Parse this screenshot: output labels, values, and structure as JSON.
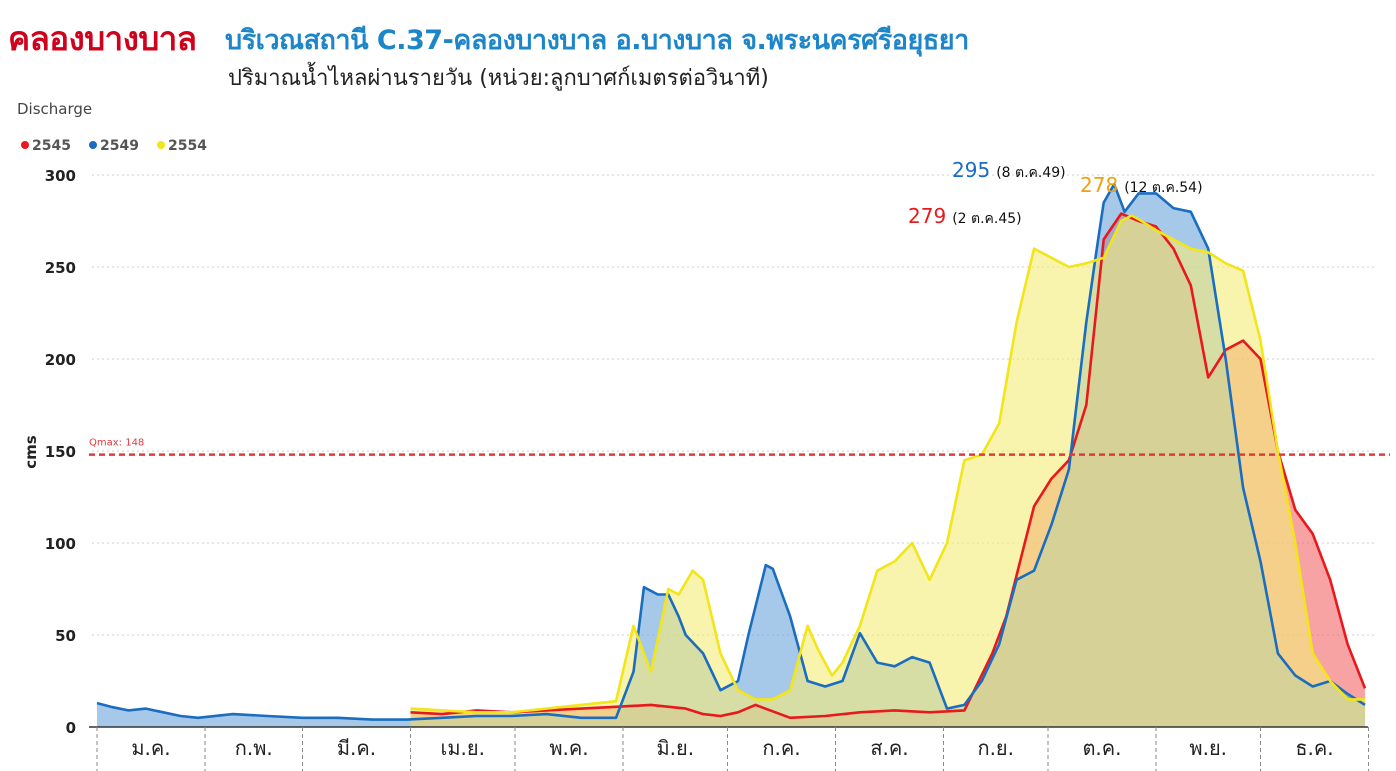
{
  "header": {
    "title_main": "คลองบางบาล",
    "title_station": "บริเวณสถานี C.37-คลองบางบาล อ.บางบาล จ.พระนครศรีอยุธยา",
    "subtitle": "ปริมาณน้ำไหลผ่านรายวัน (หน่วย:ลูกบาศก์เมตรต่อวินาที)"
  },
  "chart_data": {
    "type": "area",
    "title": "Discharge",
    "ylabel": "cms",
    "xlabel": "",
    "ylim": [
      0,
      300
    ],
    "yticks": [
      0,
      50,
      100,
      150,
      200,
      250,
      300
    ],
    "grid": true,
    "legend_position": "top-left",
    "months": [
      "ม.ค.",
      "ก.พ.",
      "มี.ค.",
      "เม.ย.",
      "พ.ค.",
      "มิ.ย.",
      "ก.ค.",
      "ส.ค.",
      "ก.ย.",
      "ต.ค.",
      "พ.ย.",
      "ธ.ค."
    ],
    "reference_line": {
      "label": "Qmax: 148",
      "value": 148,
      "color": "#e03a3e"
    },
    "series": [
      {
        "name": "2545",
        "color": "#e8191d",
        "fill": "#f36b6b",
        "x": [
          91,
          100,
          110,
          120,
          130,
          140,
          150,
          160,
          170,
          175,
          180,
          185,
          190,
          200,
          210,
          220,
          230,
          240,
          250,
          258,
          262,
          266,
          270,
          275,
          280,
          285,
          290,
          295,
          300,
          305,
          310,
          315,
          320,
          325,
          330,
          335,
          340,
          345,
          350,
          355,
          360,
          365
        ],
        "y": [
          8,
          7,
          9,
          8,
          9,
          10,
          11,
          12,
          10,
          7,
          6,
          8,
          12,
          5,
          6,
          8,
          9,
          8,
          9,
          40,
          60,
          90,
          120,
          135,
          145,
          175,
          265,
          279,
          275,
          272,
          260,
          240,
          190,
          205,
          210,
          200,
          150,
          118,
          105,
          80,
          45,
          21
        ]
      },
      {
        "name": "2549",
        "color": "#1a6dbf",
        "fill": "#6fa8dc",
        "x": [
          1,
          5,
          10,
          15,
          20,
          25,
          30,
          40,
          50,
          60,
          70,
          80,
          90,
          100,
          110,
          120,
          130,
          140,
          150,
          155,
          158,
          162,
          165,
          168,
          170,
          175,
          180,
          185,
          188,
          193,
          195,
          200,
          205,
          210,
          215,
          220,
          225,
          230,
          235,
          240,
          245,
          250,
          255,
          260,
          265,
          270,
          275,
          280,
          285,
          288,
          290,
          293,
          296,
          300,
          305,
          310,
          315,
          320,
          325,
          330,
          335,
          340,
          345,
          350,
          355,
          360,
          365
        ],
        "y": [
          13,
          11,
          9,
          10,
          8,
          6,
          5,
          7,
          6,
          5,
          5,
          4,
          4,
          5,
          6,
          6,
          7,
          5,
          5,
          30,
          76,
          72,
          72,
          60,
          50,
          40,
          20,
          25,
          50,
          88,
          86,
          60,
          25,
          22,
          25,
          51,
          35,
          33,
          38,
          35,
          10,
          12,
          25,
          45,
          80,
          85,
          110,
          140,
          220,
          260,
          285,
          295,
          280,
          290,
          290,
          282,
          280,
          260,
          200,
          130,
          90,
          40,
          28,
          22,
          25,
          18,
          12
        ]
      },
      {
        "name": "2554",
        "color": "#f2e51a",
        "fill": "#f4ec7a",
        "x": [
          91,
          100,
          110,
          120,
          130,
          140,
          150,
          155,
          160,
          165,
          168,
          172,
          175,
          180,
          185,
          190,
          195,
          200,
          205,
          208,
          212,
          215,
          220,
          225,
          230,
          235,
          240,
          245,
          250,
          255,
          260,
          265,
          270,
          275,
          280,
          285,
          290,
          295,
          298,
          300,
          305,
          310,
          315,
          320,
          325,
          330,
          335,
          340,
          345,
          350,
          355,
          360,
          365
        ],
        "y": [
          10,
          9,
          8,
          8,
          10,
          12,
          14,
          55,
          30,
          75,
          72,
          85,
          80,
          40,
          20,
          15,
          15,
          20,
          55,
          42,
          28,
          35,
          55,
          85,
          90,
          100,
          80,
          100,
          145,
          148,
          165,
          220,
          260,
          255,
          250,
          252,
          255,
          275,
          278,
          276,
          270,
          265,
          260,
          258,
          252,
          248,
          210,
          150,
          100,
          40,
          25,
          15,
          15
        ]
      }
    ],
    "annotations": [
      {
        "value": "295",
        "note": "(8 ต.ค.49)",
        "series": "2549",
        "color": "#1a6dbf"
      },
      {
        "value": "278",
        "note": "(12 ต.ค.54)",
        "series": "2554",
        "color": "#f0a10f"
      },
      {
        "value": "279",
        "note": "(2 ต.ค.45)",
        "series": "2545",
        "color": "#e8191d"
      }
    ]
  }
}
